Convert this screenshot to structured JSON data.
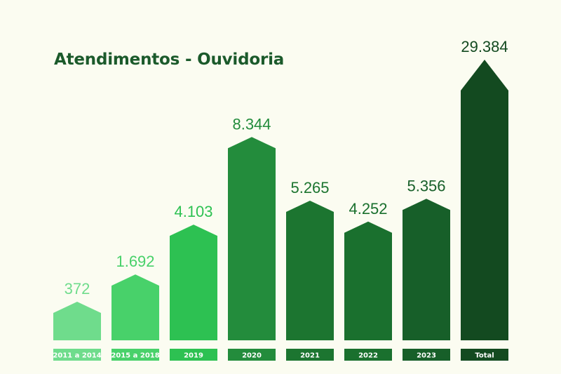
{
  "chart_data": {
    "type": "bar",
    "title": "Atendimentos - Ouvidoria",
    "categories": [
      "2011 a 2014",
      "2015 a 2018",
      "2019",
      "2020",
      "2021",
      "2022",
      "2023",
      "Total"
    ],
    "values": [
      372,
      1692,
      4103,
      8344,
      5265,
      4252,
      5356,
      29384
    ],
    "value_labels": [
      "372",
      "1.692",
      "4.103",
      "8.344",
      "5.265",
      "4.252",
      "5.356",
      "29.384"
    ],
    "colors": [
      "#6fdc8c",
      "#48d16a",
      "#2dc152",
      "#238c3c",
      "#1c7530",
      "#1a702e",
      "#175f29",
      "#134a20"
    ],
    "xlabel": "",
    "ylabel": "",
    "grid": false,
    "legend": "none"
  }
}
